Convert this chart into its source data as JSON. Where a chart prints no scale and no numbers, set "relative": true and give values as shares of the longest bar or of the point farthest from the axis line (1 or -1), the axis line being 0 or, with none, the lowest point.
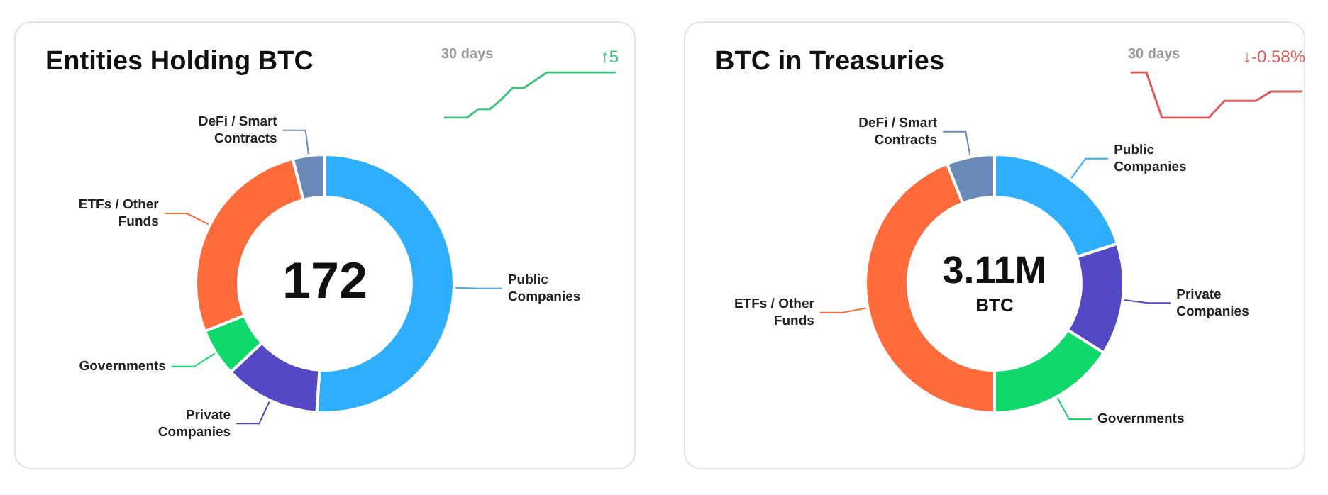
{
  "chart_data": [
    {
      "type": "donut",
      "title": "Entities Holding BTC",
      "categories": [
        "Public Companies",
        "Private Companies",
        "Governments",
        "ETFs / Other Funds",
        "DeFi / Smart Contracts"
      ],
      "values": [
        51,
        12,
        6,
        27,
        4
      ],
      "colors": [
        "#2eaefc",
        "#5548c4",
        "#10d96c",
        "#ff6b3a",
        "#6b8ab8"
      ],
      "annotations": [
        "172"
      ]
    },
    {
      "type": "line",
      "relative": true,
      "categories": [
        null,
        null,
        null,
        null,
        null,
        null,
        null,
        null,
        null,
        null,
        null,
        null,
        null,
        null,
        null,
        null
      ],
      "series": [
        {
          "color": "#3cc47c",
          "values": [
            0,
            0,
            0,
            0.19,
            0.19,
            0.4,
            0.66,
            0.66,
            0.83,
            1,
            1,
            1,
            1,
            1,
            1,
            1
          ]
        }
      ],
      "annotations": [
        "30 days",
        "↑5"
      ]
    },
    {
      "type": "donut",
      "title": "BTC in Treasuries",
      "categories": [
        "Public Companies",
        "Private Companies",
        "Governments",
        "ETFs / Other Funds",
        "DeFi / Smart Contracts"
      ],
      "values": [
        20,
        14,
        16,
        44,
        6
      ],
      "colors": [
        "#2eaefc",
        "#5548c4",
        "#10d96c",
        "#ff6b3a",
        "#6b8ab8"
      ],
      "annotations": [
        "3.11M",
        "BTC"
      ]
    },
    {
      "type": "line",
      "relative": true,
      "categories": [
        null,
        null,
        null,
        null,
        null,
        null,
        null,
        null,
        null,
        null,
        null,
        null
      ],
      "series": [
        {
          "color": "#e05a5a",
          "values": [
            1,
            1,
            0,
            0,
            0,
            0,
            0.37,
            0.37,
            0.37,
            0.58,
            0.58,
            0.58
          ]
        }
      ],
      "annotations": [
        "30 days",
        "↓-0.58%"
      ]
    }
  ]
}
